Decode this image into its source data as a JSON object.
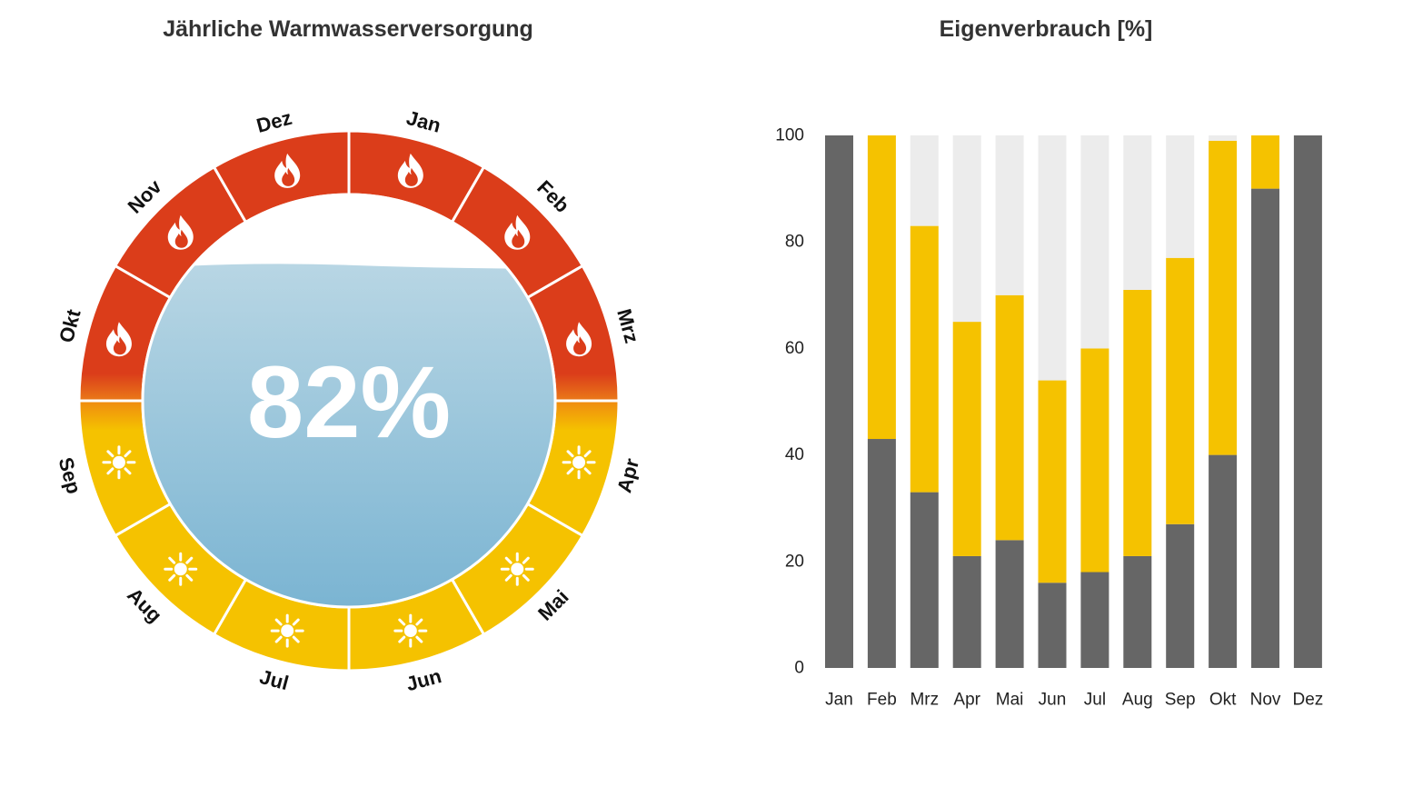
{
  "colors": {
    "heat": "#db3d1a",
    "sun": "#f5c200",
    "grid_bar": "#666666",
    "self_bar": "#f5c200",
    "rest_bar": "#ececec",
    "water_top": "#b8d6e4",
    "water_bottom": "#7ab4d2"
  },
  "chart_data": [
    {
      "type": "radial",
      "title": "Jährliche Warmwasserversorgung",
      "center_value": "82%",
      "fill_level": 0.82,
      "months": [
        {
          "label": "Jan",
          "icon": "flame-icon"
        },
        {
          "label": "Feb",
          "icon": "flame-icon"
        },
        {
          "label": "Mrz",
          "icon": "flame-icon"
        },
        {
          "label": "Apr",
          "icon": "sun-icon"
        },
        {
          "label": "Mai",
          "icon": "sun-icon"
        },
        {
          "label": "Jun",
          "icon": "sun-icon"
        },
        {
          "label": "Jul",
          "icon": "sun-icon"
        },
        {
          "label": "Aug",
          "icon": "sun-icon"
        },
        {
          "label": "Sep",
          "icon": "sun-icon"
        },
        {
          "label": "Okt",
          "icon": "flame-icon"
        },
        {
          "label": "Nov",
          "icon": "flame-icon"
        },
        {
          "label": "Dez",
          "icon": "flame-icon"
        }
      ]
    },
    {
      "type": "bar",
      "stacked": true,
      "title": "Eigenverbrauch [%]",
      "categories": [
        "Jan",
        "Feb",
        "Mrz",
        "Apr",
        "Mai",
        "Jun",
        "Jul",
        "Aug",
        "Sep",
        "Okt",
        "Nov",
        "Dez"
      ],
      "ylim": [
        0,
        100
      ],
      "yticks": [
        0,
        20,
        40,
        60,
        80,
        100
      ],
      "series": [
        {
          "values": [
            100,
            43,
            33,
            21,
            24,
            16,
            18,
            21,
            27,
            40,
            90,
            100
          ]
        },
        {
          "values": [
            0,
            57,
            50,
            44,
            46,
            38,
            42,
            50,
            50,
            59,
            10,
            0
          ]
        },
        {
          "values": [
            0,
            0,
            17,
            35,
            30,
            46,
            40,
            29,
            23,
            1,
            0,
            0
          ]
        }
      ]
    }
  ]
}
